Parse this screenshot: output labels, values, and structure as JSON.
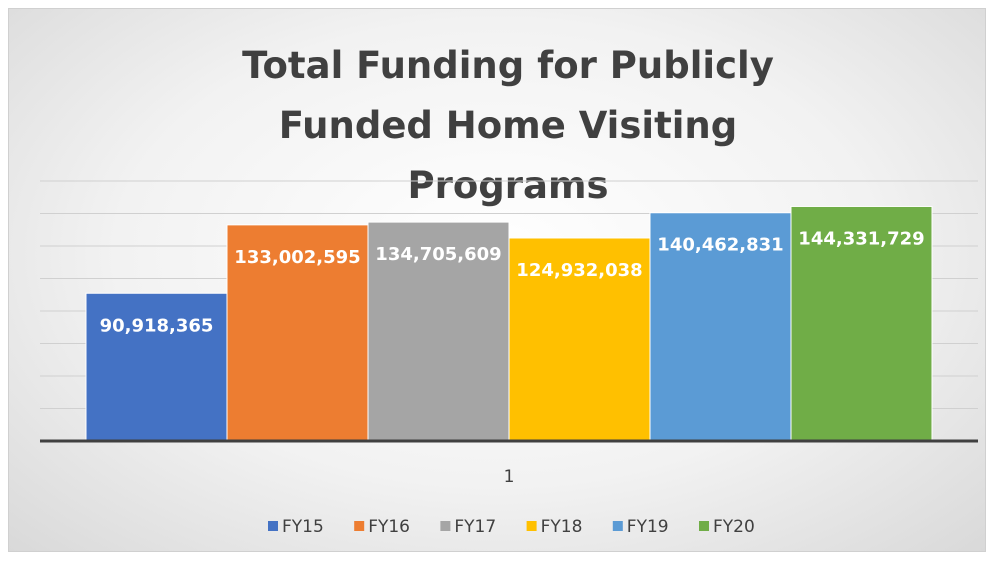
{
  "chart_data": {
    "type": "bar",
    "title": "Total Funding for Publicly Funded Home Visiting Programs",
    "categories": [
      "1"
    ],
    "series": [
      {
        "name": "FY15",
        "color": "#4472c4",
        "values": [
          90918365
        ],
        "value_labels": [
          "90,918,365"
        ]
      },
      {
        "name": "FY16",
        "color": "#ed7d31",
        "values": [
          133002595
        ],
        "value_labels": [
          "133,002,595"
        ]
      },
      {
        "name": "FY17",
        "color": "#a5a5a5",
        "values": [
          134705609
        ],
        "value_labels": [
          "134,705,609"
        ]
      },
      {
        "name": "FY18",
        "color": "#ffc000",
        "values": [
          124932038
        ],
        "value_labels": [
          "124,932,038"
        ]
      },
      {
        "name": "FY19",
        "color": "#5b9bd5",
        "values": [
          140462831
        ],
        "value_labels": [
          "140,462,831"
        ]
      },
      {
        "name": "FY20",
        "color": "#70ad47",
        "values": [
          144331729
        ],
        "value_labels": [
          "144,331,729"
        ]
      }
    ],
    "ylim": [
      0,
      160000000
    ],
    "yticks": [
      0,
      20000000,
      40000000,
      60000000,
      80000000,
      100000000,
      120000000,
      140000000,
      160000000
    ],
    "grid": true,
    "legend": "bottom"
  }
}
